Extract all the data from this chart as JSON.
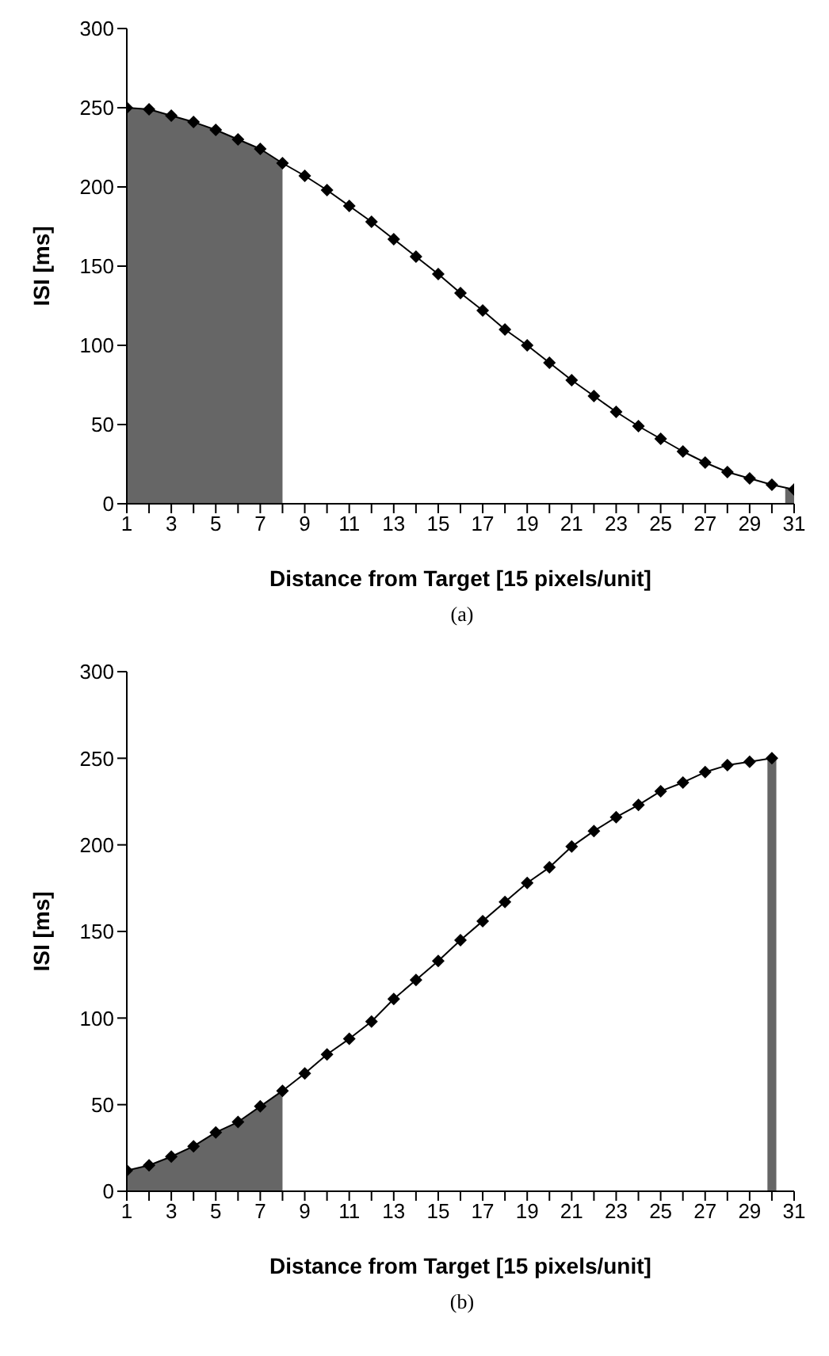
{
  "chart_data": [
    {
      "type": "line",
      "xlabel": "Distance from Target [15 pixels/unit]",
      "ylabel": "ISI [ms]",
      "annotations": [
        "(a)"
      ],
      "xlim": [
        1,
        31
      ],
      "ylim": [
        0,
        300
      ],
      "yticks": [
        0,
        50,
        100,
        150,
        200,
        250,
        300
      ],
      "xticks": [
        1,
        {
          "value": 2,
          "label": null
        },
        3,
        {
          "value": 4,
          "label": null
        },
        5,
        {
          "value": 6,
          "label": null
        },
        7,
        {
          "value": 8,
          "label": null
        },
        9,
        {
          "value": 10,
          "label": null
        },
        11,
        {
          "value": 12,
          "label": null
        },
        13,
        {
          "value": 14,
          "label": null
        },
        15,
        {
          "value": 16,
          "label": null
        },
        17,
        {
          "value": 18,
          "label": null
        },
        19,
        {
          "value": 20,
          "label": null
        },
        21,
        {
          "value": 22,
          "label": null
        },
        23,
        {
          "value": 24,
          "label": null
        },
        25,
        {
          "value": 26,
          "label": null
        },
        27,
        {
          "value": 28,
          "label": null
        },
        29,
        {
          "value": 30,
          "label": null
        },
        31
      ],
      "grid": false,
      "legend": false,
      "line_style": "solid",
      "series": [
        {
          "type": "area",
          "color": "#666666",
          "x": [
            1,
            2,
            3,
            4,
            5,
            6,
            7,
            8
          ],
          "values": [
            250,
            249,
            245,
            241,
            236,
            230,
            224,
            215
          ]
        },
        {
          "type": "area",
          "color": "#666666",
          "x": [
            30.6,
            31
          ],
          "values": [
            10,
            9
          ]
        },
        {
          "marker": "diamond",
          "color": "#000000",
          "x": [
            1,
            2,
            3,
            4,
            5,
            6,
            7,
            8,
            9,
            10,
            11,
            12,
            13,
            14,
            15,
            16,
            17,
            18,
            19,
            20,
            21,
            22,
            23,
            24,
            25,
            26,
            27,
            28,
            29,
            30,
            31
          ],
          "values": [
            250,
            249,
            245,
            241,
            236,
            230,
            224,
            215,
            207,
            198,
            188,
            178,
            167,
            156,
            145,
            133,
            122,
            110,
            100,
            89,
            78,
            68,
            58,
            49,
            41,
            33,
            26,
            20,
            16,
            12,
            9
          ]
        }
      ]
    },
    {
      "type": "line",
      "xlabel": "Distance from Target [15 pixels/unit]",
      "ylabel": "ISI [ms]",
      "annotations": [
        "(b)"
      ],
      "xlim": [
        1,
        31
      ],
      "ylim": [
        0,
        300
      ],
      "yticks": [
        0,
        50,
        100,
        150,
        200,
        250,
        300
      ],
      "xticks": [
        1,
        {
          "value": 2,
          "label": null
        },
        3,
        {
          "value": 4,
          "label": null
        },
        5,
        {
          "value": 6,
          "label": null
        },
        7,
        {
          "value": 8,
          "label": null
        },
        9,
        {
          "value": 10,
          "label": null
        },
        11,
        {
          "value": 12,
          "label": null
        },
        13,
        {
          "value": 14,
          "label": null
        },
        15,
        {
          "value": 16,
          "label": null
        },
        17,
        {
          "value": 18,
          "label": null
        },
        19,
        {
          "value": 20,
          "label": null
        },
        21,
        {
          "value": 22,
          "label": null
        },
        23,
        {
          "value": 24,
          "label": null
        },
        25,
        {
          "value": 26,
          "label": null
        },
        27,
        {
          "value": 28,
          "label": null
        },
        29,
        {
          "value": 30,
          "label": null
        },
        31
      ],
      "grid": false,
      "legend": false,
      "line_style": "solid",
      "series": [
        {
          "type": "area",
          "color": "#666666",
          "x": [
            1,
            2,
            3,
            4,
            5,
            6,
            7,
            8
          ],
          "values": [
            12,
            15,
            20,
            26,
            34,
            40,
            49,
            58
          ]
        },
        {
          "type": "area",
          "color": "#666666",
          "x": [
            29.8,
            30.2
          ],
          "values": [
            250,
            250
          ]
        },
        {
          "marker": "diamond",
          "color": "#000000",
          "x": [
            1,
            2,
            3,
            4,
            5,
            6,
            7,
            8,
            9,
            10,
            11,
            12,
            13,
            14,
            15,
            16,
            17,
            18,
            19,
            20,
            21,
            22,
            23,
            24,
            25,
            26,
            27,
            28,
            29,
            30
          ],
          "values": [
            12,
            15,
            20,
            26,
            34,
            40,
            49,
            58,
            68,
            79,
            88,
            98,
            111,
            122,
            133,
            145,
            156,
            167,
            178,
            187,
            199,
            208,
            216,
            223,
            231,
            236,
            242,
            246,
            248,
            250
          ]
        }
      ]
    }
  ]
}
